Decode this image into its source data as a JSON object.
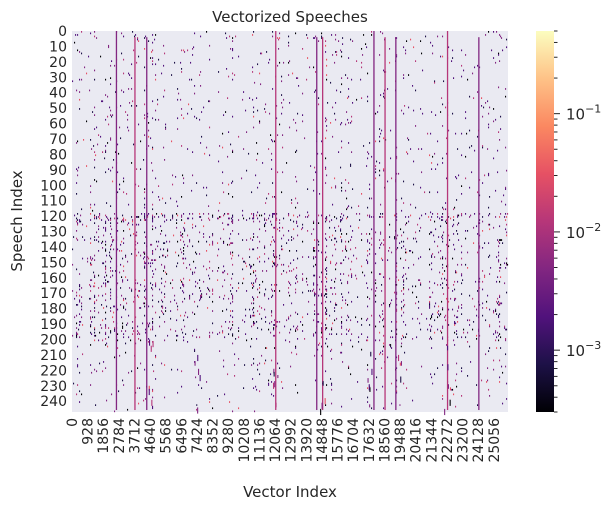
{
  "chart_data": {
    "type": "heatmap",
    "title": "Vectorized Speeches",
    "xlabel": "Vector Index",
    "ylabel": "Speech Index",
    "y_ticks": [
      0,
      10,
      20,
      30,
      40,
      50,
      60,
      70,
      80,
      90,
      100,
      110,
      120,
      130,
      140,
      150,
      160,
      170,
      180,
      190,
      200,
      210,
      220,
      230,
      240
    ],
    "y_range": [
      0,
      247
    ],
    "x_ticks": [
      0,
      928,
      1856,
      2784,
      3712,
      4640,
      5568,
      6496,
      7424,
      8352,
      9280,
      10208,
      11136,
      12064,
      12992,
      13920,
      14848,
      15776,
      16704,
      17632,
      18560,
      19488,
      20416,
      21344,
      22272,
      23200,
      24128,
      25056
    ],
    "x_range": [
      0,
      25900
    ],
    "colormap": "magma",
    "color_scale": "log",
    "color_range": [
      0.0003,
      0.5
    ],
    "colorbar_ticks": [
      {
        "value": 0.001,
        "base": "10",
        "exp": "−3"
      },
      {
        "value": 0.01,
        "base": "10",
        "exp": "−2"
      },
      {
        "value": 0.1,
        "base": "10",
        "exp": "−1"
      }
    ],
    "background_value": "0 (masked)",
    "dense_band_rows": [
      118,
      200
    ],
    "strong_columns": [
      2600,
      3700,
      4400,
      12064,
      14500,
      14848,
      17900,
      18560,
      19200,
      22272,
      24128
    ]
  },
  "colors": {
    "background": "#eaeaf2",
    "magma": [
      "#000004",
      "#1d1147",
      "#51127c",
      "#822681",
      "#b63679",
      "#e65164",
      "#fb8861",
      "#fec287",
      "#fcfdbf"
    ]
  }
}
